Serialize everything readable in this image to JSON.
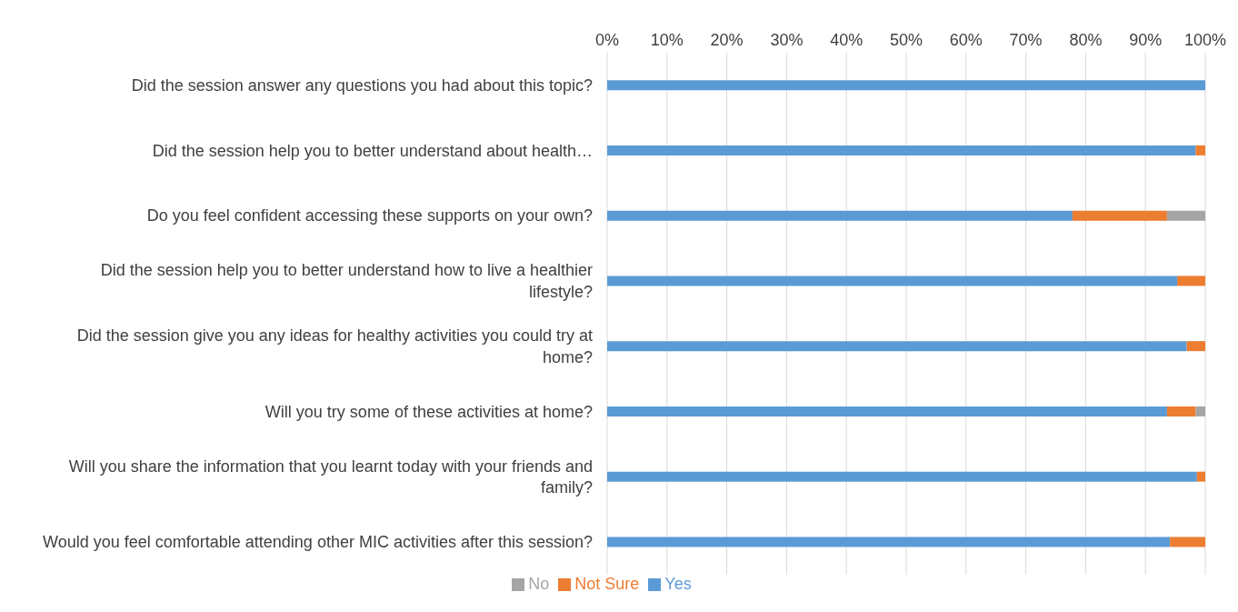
{
  "chart_data": {
    "type": "bar",
    "orientation": "horizontal",
    "stacked": true,
    "categories": [
      "Did the session answer any questions you had about this topic?",
      "Did the session help you to better understand about health…",
      "Do you feel confident accessing these supports on your own?",
      "Did the session help you to better understand how to live a healthier lifestyle?",
      "Did the session give you any ideas for healthy activities you could try at home?",
      "Will you try some of these activities at home?",
      "Will you share the information that you learnt today with your friends and family?",
      "Would you feel comfortable attending other MIC activities after this session?"
    ],
    "series": [
      {
        "name": "Yes",
        "color": "#5b9bd5",
        "values": [
          100,
          98.4,
          77.8,
          95.3,
          96.9,
          93.6,
          98.6,
          94.1
        ]
      },
      {
        "name": "Not Sure",
        "color": "#ed7d31",
        "values": [
          0,
          1.6,
          15.8,
          4.7,
          3.1,
          4.8,
          1.4,
          5.9
        ]
      },
      {
        "name": "No",
        "color": "#a5a5a5",
        "values": [
          0,
          0,
          6.4,
          0,
          0,
          1.6,
          0,
          0
        ]
      }
    ],
    "xlim": [
      0,
      100
    ],
    "xticks": [
      {
        "value": 0,
        "label": "0%"
      },
      {
        "value": 10,
        "label": "10%"
      },
      {
        "value": 20,
        "label": "20%"
      },
      {
        "value": 30,
        "label": "30%"
      },
      {
        "value": 40,
        "label": "40%"
      },
      {
        "value": 50,
        "label": "50%"
      },
      {
        "value": 60,
        "label": "60%"
      },
      {
        "value": 70,
        "label": "70%"
      },
      {
        "value": 80,
        "label": "80%"
      },
      {
        "value": 90,
        "label": "90%"
      },
      {
        "value": 100,
        "label": "100%"
      }
    ],
    "grid": "x",
    "legend": "bottom"
  }
}
